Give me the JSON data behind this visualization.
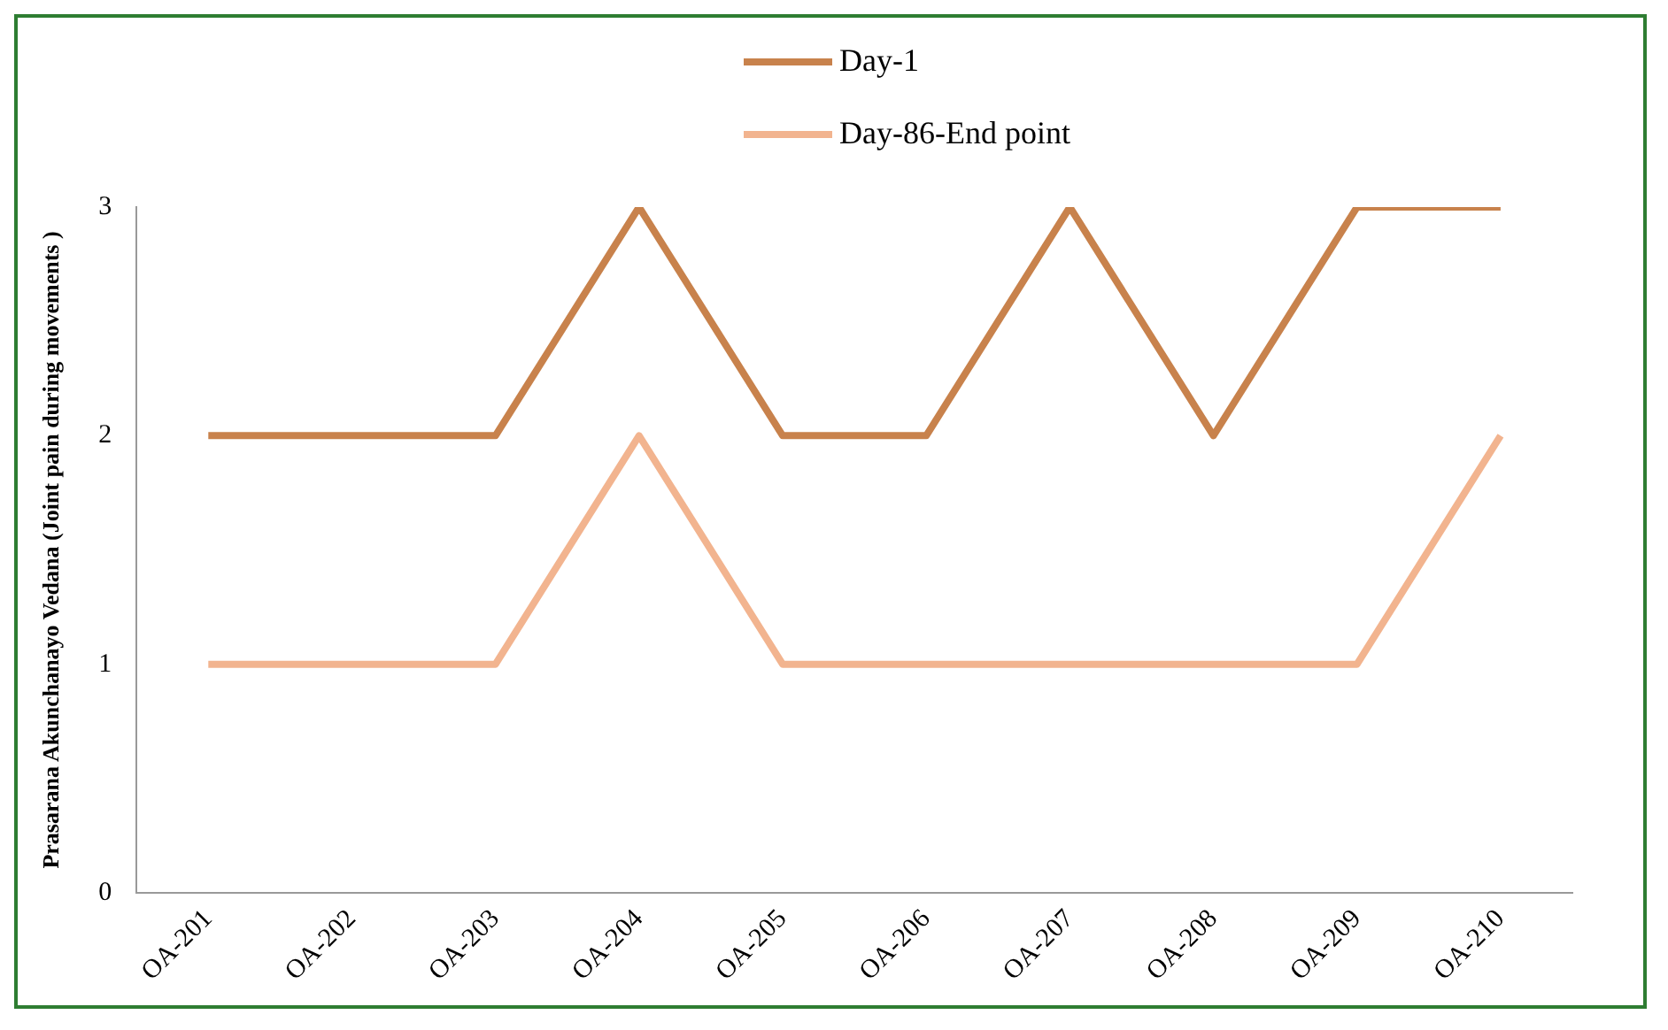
{
  "chart_data": {
    "type": "line",
    "ylabel": "Prasarana Akunchanayo Vedana (Joint pain during movements )",
    "categories": [
      "OA-201",
      "OA-202",
      "OA-203",
      "OA-204",
      "OA-205",
      "OA-206",
      "OA-207",
      "OA-208",
      "OA-209",
      "OA-210"
    ],
    "series": [
      {
        "name": "Day-1",
        "color": "#c8824c",
        "values": [
          2,
          2,
          2,
          3,
          2,
          2,
          3,
          2,
          3,
          3
        ]
      },
      {
        "name": "Day-86-End point",
        "color": "#f2b48f",
        "values": [
          1,
          1,
          1,
          2,
          1,
          1,
          1,
          1,
          1,
          2
        ]
      }
    ],
    "ylim": [
      0,
      3
    ],
    "yticks": [
      0,
      1,
      2,
      3
    ],
    "grid": false,
    "legend": "top",
    "marker": "none",
    "line_style": "solid"
  }
}
